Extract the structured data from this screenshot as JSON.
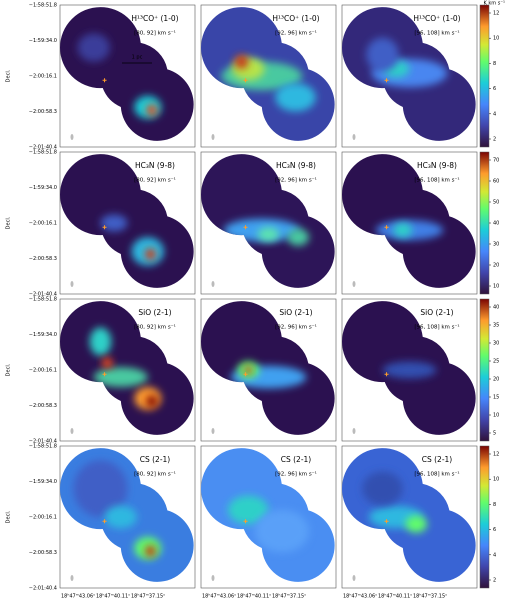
{
  "axes": {
    "ylabel": "Decl.",
    "xlabel": "R.A.",
    "yticks": [
      "−1:58:51.8",
      "−1:59:34.0",
      "−2:00:16.1",
      "−2:00:58.3",
      "−2:01:40.4"
    ],
    "xticks": [
      "18ʰ47ᵐ43.06ˢ",
      "18ʰ47ᵐ40.11ˢ",
      "18ʰ47ᵐ37.15ˢ"
    ]
  },
  "scale_bar": "1 pc",
  "colorbar_unit": "K km s⁻¹",
  "rows": [
    {
      "line": "H¹³CO⁺ (1-0)",
      "colorbar_ticks": [
        2,
        4,
        6,
        8,
        10,
        12
      ],
      "panels": [
        "[80, 92] km s⁻¹",
        "[92, 96] km s⁻¹",
        "[96, 108] km s⁻¹"
      ]
    },
    {
      "line": "HC₃N (9-8)",
      "colorbar_ticks": [
        10,
        20,
        30,
        40,
        50,
        60,
        70
      ],
      "panels": [
        "[80, 92] km s⁻¹",
        "[92, 96] km s⁻¹",
        "[96, 108] km s⁻¹"
      ]
    },
    {
      "line": "SiO (2-1)",
      "colorbar_ticks": [
        5,
        10,
        15,
        20,
        25,
        30,
        35,
        40
      ],
      "panels": [
        "[80, 92] km s⁻¹",
        "[92, 96] km s⁻¹",
        "[96, 108] km s⁻¹"
      ]
    },
    {
      "line": "CS (2-1)",
      "colorbar_ticks": [
        2,
        4,
        6,
        8,
        10,
        12
      ],
      "panels": [
        "[80, 92] km s⁻¹",
        "[92, 96] km s⁻¹",
        "[96, 108] km s⁻¹"
      ]
    }
  ]
}
